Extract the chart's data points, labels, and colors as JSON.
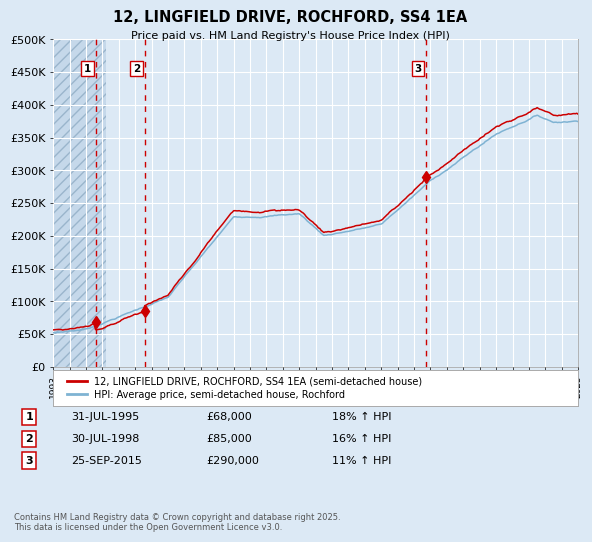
{
  "title": "12, LINGFIELD DRIVE, ROCHFORD, SS4 1EA",
  "subtitle": "Price paid vs. HM Land Registry's House Price Index (HPI)",
  "bg_color": "#dce9f5",
  "grid_color": "#ffffff",
  "red_line_color": "#cc0000",
  "blue_line_color": "#7fb3d3",
  "marker_color": "#cc0000",
  "dashed_line_color": "#cc0000",
  "ylim": [
    0,
    500000
  ],
  "yticks": [
    0,
    50000,
    100000,
    150000,
    200000,
    250000,
    300000,
    350000,
    400000,
    450000,
    500000
  ],
  "ytick_labels": [
    "£0",
    "£50K",
    "£100K",
    "£150K",
    "£200K",
    "£250K",
    "£300K",
    "£350K",
    "£400K",
    "£450K",
    "£500K"
  ],
  "xstart_year": 1993,
  "xend_year": 2025,
  "sale_dates": [
    "1995-07-31",
    "1998-07-30",
    "2015-09-25"
  ],
  "sale_prices": [
    68000,
    85000,
    290000
  ],
  "sale_labels": [
    "1",
    "2",
    "3"
  ],
  "legend_entries": [
    "12, LINGFIELD DRIVE, ROCHFORD, SS4 1EA (semi-detached house)",
    "HPI: Average price, semi-detached house, Rochford"
  ],
  "table_rows": [
    {
      "label": "1",
      "date": "31-JUL-1995",
      "price": "£68,000",
      "hpi": "18% ↑ HPI"
    },
    {
      "label": "2",
      "date": "30-JUL-1998",
      "price": "£85,000",
      "hpi": "16% ↑ HPI"
    },
    {
      "label": "3",
      "date": "25-SEP-2015",
      "price": "£290,000",
      "hpi": "11% ↑ HPI"
    }
  ],
  "footer": "Contains HM Land Registry data © Crown copyright and database right 2025.\nThis data is licensed under the Open Government Licence v3.0."
}
